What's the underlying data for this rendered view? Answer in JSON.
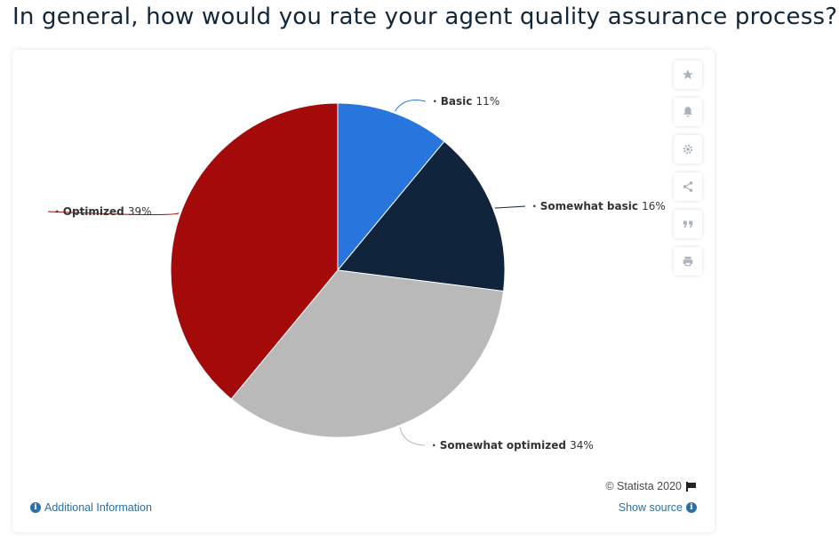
{
  "header": {
    "title": "In general, how would you rate your agent quality assurance process?"
  },
  "chart_data": {
    "type": "pie",
    "title": "",
    "slices": [
      {
        "label": "Basic",
        "value": 11,
        "display": "11%",
        "color": "#2876dd"
      },
      {
        "label": "Somewhat basic",
        "value": 16,
        "display": "16%",
        "color": "#10243c"
      },
      {
        "label": "Somewhat optimized",
        "value": 34,
        "display": "34%",
        "color": "#b9b9b9"
      },
      {
        "label": "Optimized",
        "value": 39,
        "display": "39%",
        "color": "#a50a0a"
      }
    ],
    "start_angle_deg": 0,
    "direction": "clockwise",
    "legend": "none"
  },
  "toolbar": {
    "icons": [
      "star-icon",
      "bell-icon",
      "gear-icon",
      "share-icon",
      "quote-icon",
      "print-icon"
    ]
  },
  "footer": {
    "copyright": "© Statista 2020",
    "additional_info": "Additional Information",
    "show_source": "Show source"
  }
}
